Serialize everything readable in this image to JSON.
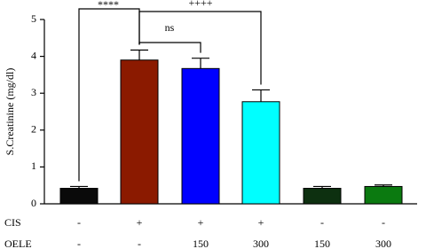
{
  "chart_data": {
    "type": "bar",
    "ylabel": "S.Creatinine (mg/dl)",
    "values": [
      0.42,
      3.9,
      3.67,
      2.77,
      0.42,
      0.47
    ],
    "errors": [
      0.05,
      0.27,
      0.28,
      0.32,
      0.05,
      0.04
    ],
    "colors": [
      "#0a0a0a",
      "#8b1a00",
      "#0000ff",
      "#00ffff",
      "#0d3010",
      "#0b7a10"
    ],
    "ylim": [
      0,
      5
    ],
    "yticks": [
      0,
      1,
      2,
      3,
      4,
      5
    ],
    "comparisons": [
      "****",
      "ns",
      "++++"
    ],
    "treatments": [
      {
        "name": "CIS",
        "values": [
          "-",
          "+",
          "+",
          "+",
          "-",
          "-"
        ]
      },
      {
        "name": "OELE",
        "values": [
          "-",
          "-",
          "150",
          "300",
          "150",
          "300"
        ]
      }
    ]
  }
}
